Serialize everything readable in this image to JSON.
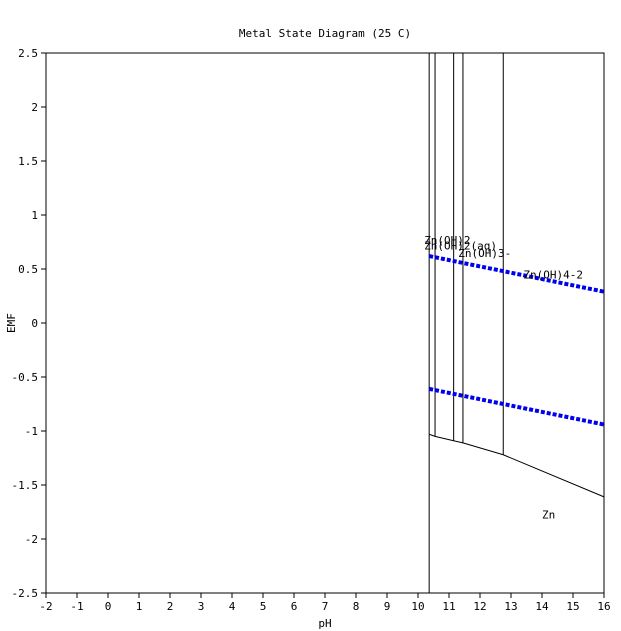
{
  "chart_data": {
    "type": "line",
    "title": "Metal State Diagram (25 C)",
    "xlabel": "pH",
    "ylabel": "EMF",
    "xlim": [
      -2,
      16
    ],
    "ylim": [
      -2.5,
      2.5
    ],
    "xticks": [
      "-2",
      "-1",
      "0",
      "1",
      "2",
      "3",
      "4",
      "5",
      "6",
      "7",
      "8",
      "9",
      "10",
      "11",
      "12",
      "13",
      "14",
      "15",
      "16"
    ],
    "yticks": [
      "2.5",
      "2",
      "1.5",
      "1",
      "0.5",
      "0",
      "-0.5",
      "-1",
      "-1.5",
      "-2",
      "-2.5"
    ],
    "grid": false,
    "colors": {
      "water_lines": "#0000ee",
      "boundaries": "#000000"
    },
    "water_stability_lines": [
      {
        "x": [
          10.36,
          16.0
        ],
        "y": [
          0.62,
          0.29
        ]
      },
      {
        "x": [
          10.36,
          16.0
        ],
        "y": [
          -0.61,
          -0.94
        ]
      }
    ],
    "boundaries": [
      {
        "x": [
          10.36,
          10.36
        ],
        "y": [
          -2.5,
          2.5
        ]
      },
      {
        "x": [
          10.55,
          10.55
        ],
        "y": [
          -1.05,
          2.5
        ]
      },
      {
        "x": [
          11.15,
          11.15
        ],
        "y": [
          -1.09,
          2.5
        ]
      },
      {
        "x": [
          11.45,
          11.45
        ],
        "y": [
          -1.11,
          2.5
        ]
      },
      {
        "x": [
          12.75,
          12.75
        ],
        "y": [
          -1.22,
          2.5
        ]
      },
      {
        "x": [
          10.36,
          10.55,
          11.15,
          11.45,
          12.75,
          16.0
        ],
        "y": [
          -1.03,
          -1.05,
          -1.09,
          -1.11,
          -1.22,
          -1.61
        ]
      }
    ],
    "region_labels": [
      {
        "text": "Zn(OH)2",
        "x": 10.2,
        "y": 0.73
      },
      {
        "text": "Zn(OH)2(aq)",
        "x": 10.2,
        "y": 0.68
      },
      {
        "text": "Zn(OH)3-",
        "x": 11.3,
        "y": 0.61
      },
      {
        "text": "Zn(OH)4-2",
        "x": 13.4,
        "y": 0.41
      },
      {
        "text": "Zn",
        "x": 14.0,
        "y": -1.81
      }
    ]
  }
}
